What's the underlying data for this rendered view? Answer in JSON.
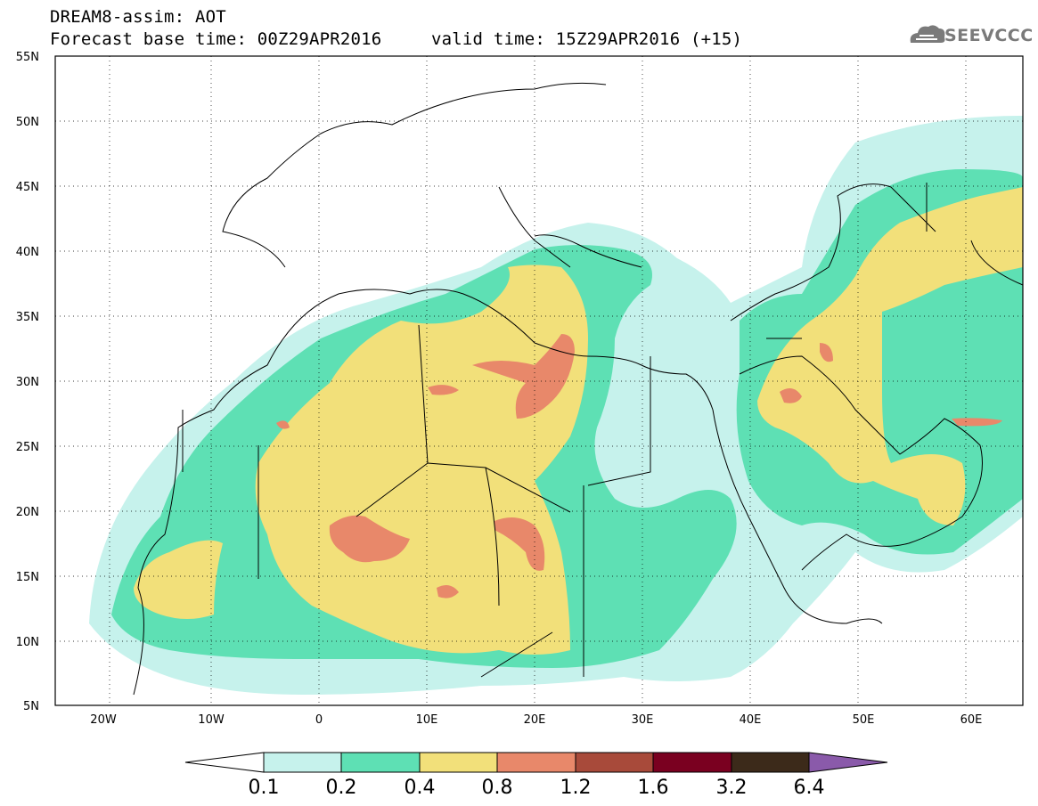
{
  "header": {
    "line1": "DREAM8-assim: AOT",
    "base_time": "Forecast base time: 00Z29APR2016",
    "valid_time": "valid time: 15Z29APR2016 (+15)"
  },
  "logo": {
    "text": "SEEVCCC",
    "icon": "cloud-icon",
    "color": "#7a7a7a"
  },
  "map": {
    "projection": "lat-lon",
    "lon_range": [
      -25,
      65
    ],
    "lat_range": [
      5,
      55
    ],
    "grid": "dotted",
    "lat_ticks": [
      "55N",
      "50N",
      "45N",
      "40N",
      "35N",
      "30N",
      "25N",
      "20N",
      "15N",
      "10N",
      "5N"
    ],
    "lon_ticks": [
      "20W",
      "10W",
      "0",
      "10E",
      "20E",
      "30E",
      "40E",
      "50E",
      "60E"
    ]
  },
  "colorbar": {
    "labels": [
      "0.1",
      "0.2",
      "0.4",
      "0.8",
      "1.2",
      "1.6",
      "3.2",
      "6.4"
    ],
    "colors": [
      "#ffffff",
      "#c6f2ec",
      "#5ee0b4",
      "#f2e07a",
      "#e8886a",
      "#a84a3a",
      "#7a0020",
      "#3c2a1a",
      "#8a5aaa"
    ]
  }
}
